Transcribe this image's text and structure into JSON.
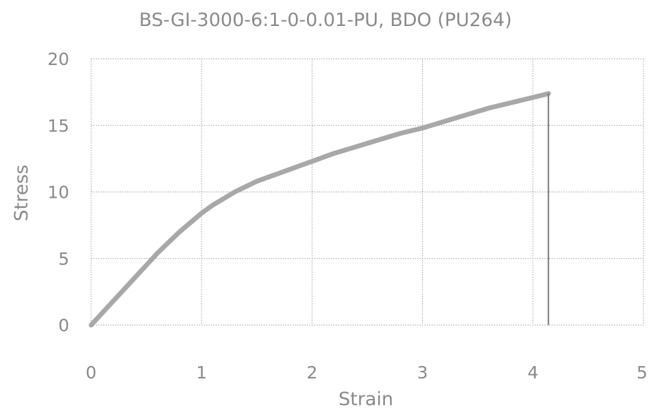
{
  "chart_data": {
    "type": "line",
    "title": "BS-GI-3000-6:1-0-0.01-PU, BDO (PU264)",
    "xlabel": "Strain",
    "ylabel": "Stress",
    "xlim": [
      0,
      5
    ],
    "ylim": [
      0,
      20
    ],
    "x_ticks": [
      "0",
      "1",
      "2",
      "3",
      "4",
      "5"
    ],
    "y_ticks": [
      "0",
      "5",
      "10",
      "15",
      "20"
    ],
    "grid": true,
    "legend": "none",
    "series": [
      {
        "color": "#a8a8a8",
        "x": [
          0,
          0.1,
          0.2,
          0.3,
          0.4,
          0.5,
          0.6,
          0.7,
          0.8,
          0.9,
          1.0,
          1.1,
          1.2,
          1.3,
          1.4,
          1.5,
          1.6,
          1.7,
          1.8,
          1.9,
          2.0,
          2.2,
          2.4,
          2.6,
          2.8,
          3.0,
          3.2,
          3.4,
          3.6,
          3.8,
          4.0,
          4.1,
          4.14
        ],
        "y": [
          0,
          0.9,
          1.8,
          2.7,
          3.6,
          4.5,
          5.4,
          6.2,
          7.0,
          7.7,
          8.4,
          9.0,
          9.5,
          10.0,
          10.4,
          10.8,
          11.1,
          11.4,
          11.7,
          12.0,
          12.3,
          12.9,
          13.4,
          13.9,
          14.4,
          14.8,
          15.3,
          15.8,
          16.3,
          16.7,
          17.1,
          17.3,
          17.4
        ]
      }
    ],
    "break_x": 4.14
  }
}
